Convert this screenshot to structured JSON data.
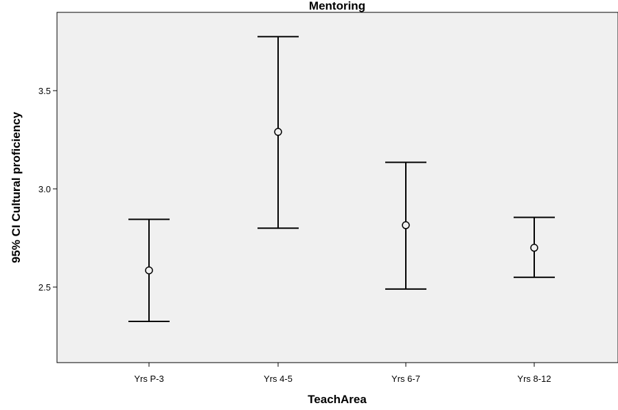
{
  "chart_data": {
    "type": "errorbar",
    "title": "Mentoring",
    "xlabel": "TeachArea",
    "ylabel": "95% CI Cultural proficiency",
    "categories": [
      "Yrs P-3",
      "Yrs 4-5",
      "Yrs 6-7",
      "Yrs 8-12"
    ],
    "series": [
      {
        "means": [
          2.585,
          3.29,
          2.815,
          2.7
        ],
        "lower": [
          2.325,
          2.8,
          2.49,
          2.55
        ],
        "upper": [
          2.845,
          3.775,
          3.135,
          2.855
        ]
      }
    ],
    "yticks": [
      "2.5",
      "3.0",
      "3.5"
    ],
    "ylim": [
      2.1,
      3.92
    ],
    "grid": false,
    "plot_background": "#f0f0f0",
    "line_color": "#000000"
  }
}
